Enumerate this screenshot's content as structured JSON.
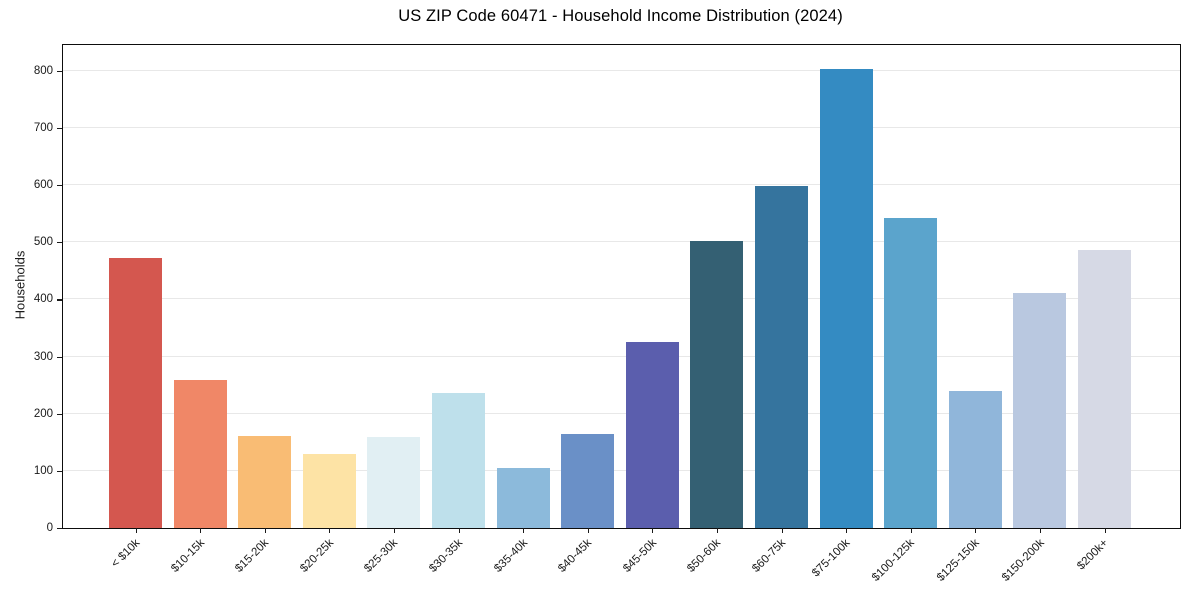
{
  "chart_data": {
    "type": "bar",
    "title": "US ZIP Code 60471 - Household Income Distribution (2024)",
    "xlabel": "",
    "ylabel": "Households",
    "categories": [
      "< $10k",
      "$10-15k",
      "$15-20k",
      "$20-25k",
      "$25-30k",
      "$30-35k",
      "$35-40k",
      "$40-45k",
      "$45-50k",
      "$50-60k",
      "$60-75k",
      "$75-100k",
      "$100-125k",
      "$125-150k",
      "$150-200k",
      "$200k+"
    ],
    "values": [
      472,
      259,
      161,
      129,
      159,
      236,
      105,
      164,
      325,
      502,
      598,
      803,
      542,
      240,
      411,
      486
    ],
    "bar_colors": [
      "#d4574f",
      "#f08767",
      "#f9bc74",
      "#fde3a5",
      "#e1eff3",
      "#bee0eb",
      "#8cbadb",
      "#6a90c7",
      "#5b5ead",
      "#346073",
      "#35749e",
      "#348bc2",
      "#5ba4cc",
      "#90b6da",
      "#b9c8e0",
      "#d6d9e5"
    ],
    "yticks": [
      0,
      100,
      200,
      300,
      400,
      500,
      600,
      700,
      800
    ],
    "ylim": [
      0,
      845
    ],
    "grid": "horizontal",
    "legend": "none",
    "x_tick_rotation": 45
  }
}
